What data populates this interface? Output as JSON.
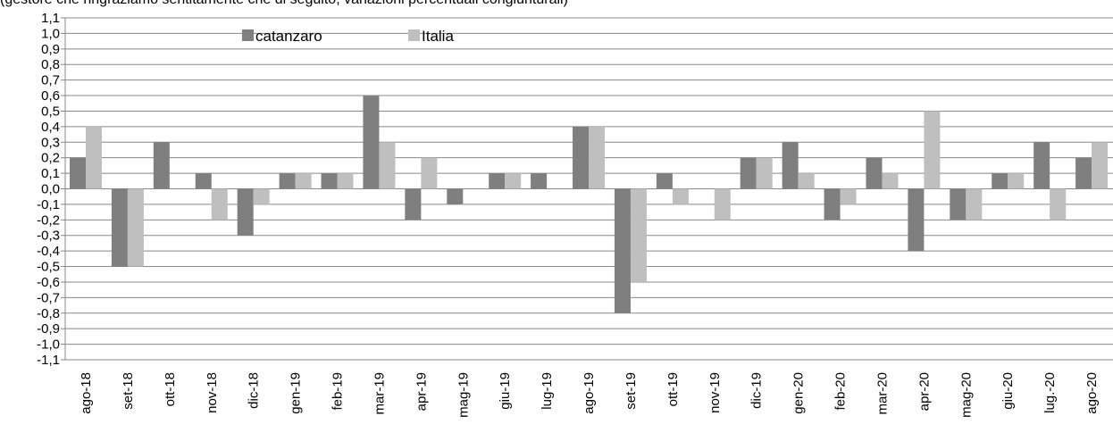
{
  "chart_data": {
    "type": "bar",
    "title": "(gestore che ringraziamo sentitamente che di seguito, variazioni percentuali congiunturali)",
    "categories": [
      "ago-18",
      "set-18",
      "ott-18",
      "nov-18",
      "dic-18",
      "gen-19",
      "feb-19",
      "mar-19",
      "apr-19",
      "mag-19",
      "giu-19",
      "lug-19",
      "ago-19",
      "set-19",
      "ott-19",
      "nov-19",
      "dic-19",
      "gen-20",
      "feb-20",
      "mar-20",
      "apr-20",
      "mag-20",
      "giu-20",
      "lug.-20",
      "ago-20"
    ],
    "series": [
      {
        "name": "catanzaro",
        "color": "#7f7f7f",
        "values": [
          0.2,
          -0.5,
          0.3,
          0.1,
          -0.3,
          0.1,
          0.1,
          0.6,
          -0.2,
          -0.1,
          0.1,
          0.1,
          0.4,
          -0.8,
          0.1,
          0.0,
          0.2,
          0.3,
          -0.2,
          0.2,
          -0.4,
          -0.2,
          0.1,
          0.3,
          0.2
        ]
      },
      {
        "name": "Italia",
        "color": "#bfbfbf",
        "values": [
          0.4,
          -0.5,
          0.0,
          -0.2,
          -0.1,
          0.1,
          0.1,
          0.3,
          0.2,
          0.0,
          0.1,
          0.0,
          0.4,
          -0.6,
          -0.1,
          -0.2,
          0.2,
          0.1,
          -0.1,
          0.1,
          0.5,
          -0.2,
          0.1,
          -0.2,
          0.3
        ]
      }
    ],
    "ylim": [
      -1.1,
      1.1
    ],
    "ytick_step": 0.1,
    "ytick_labels": [
      "1,1",
      "1,0",
      "0,9",
      "0,8",
      "0,7",
      "0,6",
      "0,5",
      "0,4",
      "0,3",
      "0,2",
      "0,1",
      "0,0",
      "-0,1",
      "-0,2",
      "-0,3",
      "-0,4",
      "-0,5",
      "-0,6",
      "-0,7",
      "-0,8",
      "-0,9",
      "-1,0",
      "-1,1"
    ],
    "grid": true,
    "grid_color": "#888888",
    "legend_position": "top-left"
  }
}
